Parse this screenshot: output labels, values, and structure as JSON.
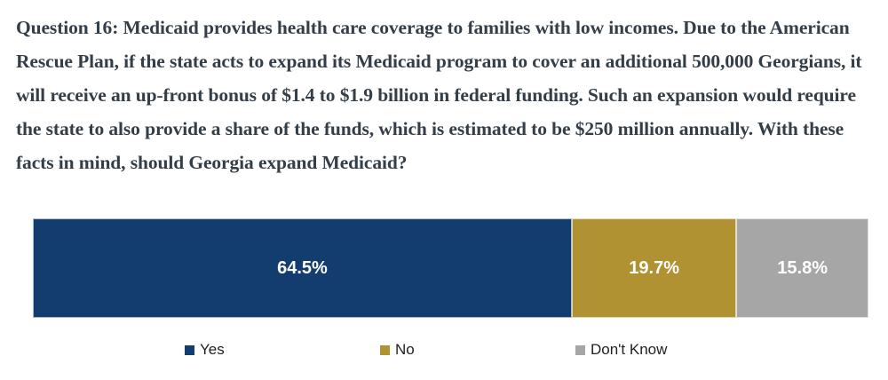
{
  "question": {
    "text": "Question 16: Medicaid provides health care coverage to families with low incomes. Due to the American Rescue Plan, if the state acts to expand its Medicaid program to cover an additional 500,000 Georgians, it will receive an up-front bonus of $1.4 to $1.9 billion in federal funding. Such an expansion would require the state to also provide a share of the funds, which is estimated to be $250 million annually. With these facts in mind, should Georgia expand Medicaid?"
  },
  "chart_data": {
    "type": "bar",
    "subtype": "horizontal-stacked",
    "categories": [
      "Yes",
      "No",
      "Don't Know"
    ],
    "values": [
      64.5,
      19.7,
      15.8
    ],
    "value_labels": [
      "64.5%",
      "19.7%",
      "15.8%"
    ],
    "colors": [
      "#133D6E",
      "#B09232",
      "#A6A6A6"
    ],
    "label_color": "#FFFFFF",
    "legend_position": "bottom",
    "axis_visible": false,
    "grid": false,
    "title": "",
    "xlabel": "",
    "ylabel": "",
    "xlim": [
      0,
      100
    ]
  },
  "legend": {
    "items": [
      {
        "label": "Yes",
        "color": "#133D6E"
      },
      {
        "label": "No",
        "color": "#B09232"
      },
      {
        "label": "Don't Know",
        "color": "#A6A6A6"
      }
    ]
  }
}
